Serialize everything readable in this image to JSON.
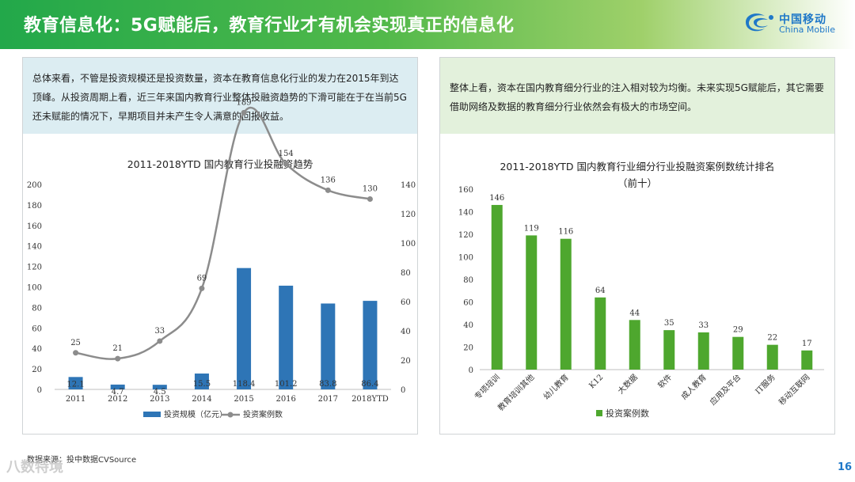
{
  "header": {
    "title": "教育信息化：5G赋能后，教育行业才有机会实现真正的信息化"
  },
  "logo": {
    "cn": "中国移动",
    "en": "China Mobile"
  },
  "left_note": "总体来看，不管是投资规模还是投资数量，资本在教育信息化行业的发力在2015年到达顶峰。从投资周期上看，近三年来国内教育行业整体投融资趋势的下滑可能在于在当前5G还未赋能的情况下，早期项目并未产生令人满意的回报收益。",
  "right_note": "整体上看，资本在国内教育细分行业的注入相对较为均衡。未来实现5G赋能后，其它需要借助网络及数据的教育细分行业依然会有极大的市场空间。",
  "source": "数据来源：投中数据CVSource",
  "watermark": "八数特境",
  "page_number": "16",
  "colors": {
    "bar_blue": "#2e75b6",
    "line_gray": "#8c8c8c",
    "bar_green": "#4ea72e"
  },
  "chart_data": [
    {
      "type": "bar",
      "title": "2011-2018YTD 国内教育行业投融资趋势",
      "categories": [
        "2011",
        "2012",
        "2013",
        "2014",
        "2015",
        "2016",
        "2017",
        "2018YTD"
      ],
      "series": [
        {
          "name": "投资规模（亿元）",
          "type": "bar",
          "axis": "left",
          "values": [
            12.1,
            4.7,
            4.5,
            15.5,
            118.4,
            101.2,
            83.8,
            86.4
          ],
          "labels": [
            "12.1",
            "4.7",
            "4.5",
            "15.5",
            "118.4",
            "101.2",
            "83.8",
            "86.4"
          ]
        },
        {
          "name": "投资案例数",
          "type": "line",
          "axis": "right",
          "values": [
            25,
            21,
            33,
            69,
            189,
            154,
            136,
            130
          ],
          "labels": [
            "25",
            "21",
            "33",
            "69",
            "189",
            "154",
            "136",
            "130"
          ]
        }
      ],
      "ylim_left": [
        0,
        200
      ],
      "yticks_left": [
        "0",
        "20",
        "40",
        "60",
        "80",
        "100",
        "120",
        "140",
        "160",
        "180",
        "200"
      ],
      "ylim_right": [
        0,
        140
      ],
      "yticks_right": [
        "0",
        "20",
        "40",
        "60",
        "80",
        "100",
        "120",
        "140"
      ],
      "legend": "bottom"
    },
    {
      "type": "bar",
      "title": "2011-2018YTD 国内教育行业细分行业投融资案例数统计排名",
      "subtitle": "（前十）",
      "categories": [
        "专项培训",
        "教育培训其他",
        "幼儿教育",
        "K12",
        "大数据",
        "软件",
        "成人教育",
        "应用及平台",
        "IT服务",
        "移动互联网"
      ],
      "series": [
        {
          "name": "投资案例数",
          "values": [
            146,
            119,
            116,
            64,
            44,
            35,
            33,
            29,
            22,
            17
          ],
          "labels": [
            "146",
            "119",
            "116",
            "64",
            "44",
            "35",
            "33",
            "29",
            "22",
            "17"
          ]
        }
      ],
      "ylim": [
        0,
        160
      ],
      "yticks": [
        "0",
        "20",
        "40",
        "60",
        "80",
        "100",
        "120",
        "140",
        "160"
      ],
      "legend": "bottom"
    }
  ]
}
